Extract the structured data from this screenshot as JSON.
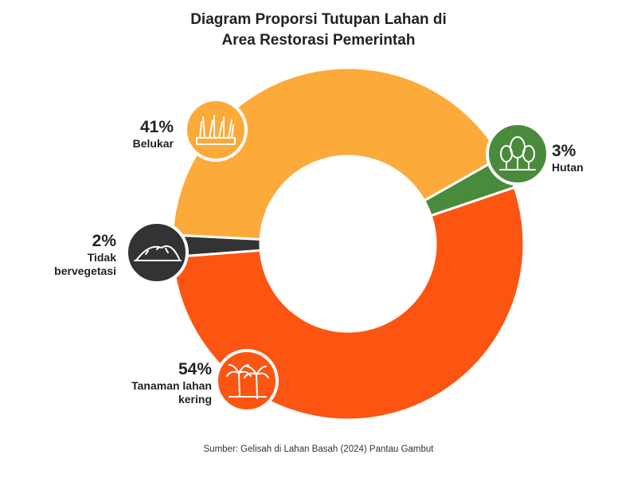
{
  "title_line1": "Diagram Proporsi Tutupan Lahan di",
  "title_line2": "Area Restorasi Pemerintah",
  "source": "Sumber: Gelisah di Lahan Basah (2024) Pantau Gambut",
  "chart_data": {
    "type": "donut",
    "title": "Diagram Proporsi Tutupan Lahan di Area Restorasi Pemerintah",
    "unit": "%",
    "slices": [
      {
        "key": "hutan",
        "label": "Hutan",
        "pct_label": "3%",
        "value": 3,
        "color": "#4a8a3c",
        "icon": "trees-icon"
      },
      {
        "key": "tanaman",
        "label": "Tanaman lahan kering",
        "pct_label": "54%",
        "value": 54,
        "color": "#fc5512",
        "icon": "palm-trees-icon"
      },
      {
        "key": "tidak",
        "label": "Tidak bervegetasi",
        "pct_label": "2%",
        "value": 2,
        "color": "#333333",
        "icon": "bare-land-icon"
      },
      {
        "key": "belukar",
        "label": "Belukar",
        "pct_label": "41%",
        "value": 41,
        "color": "#fcaa3a",
        "icon": "grass-icon"
      }
    ]
  }
}
